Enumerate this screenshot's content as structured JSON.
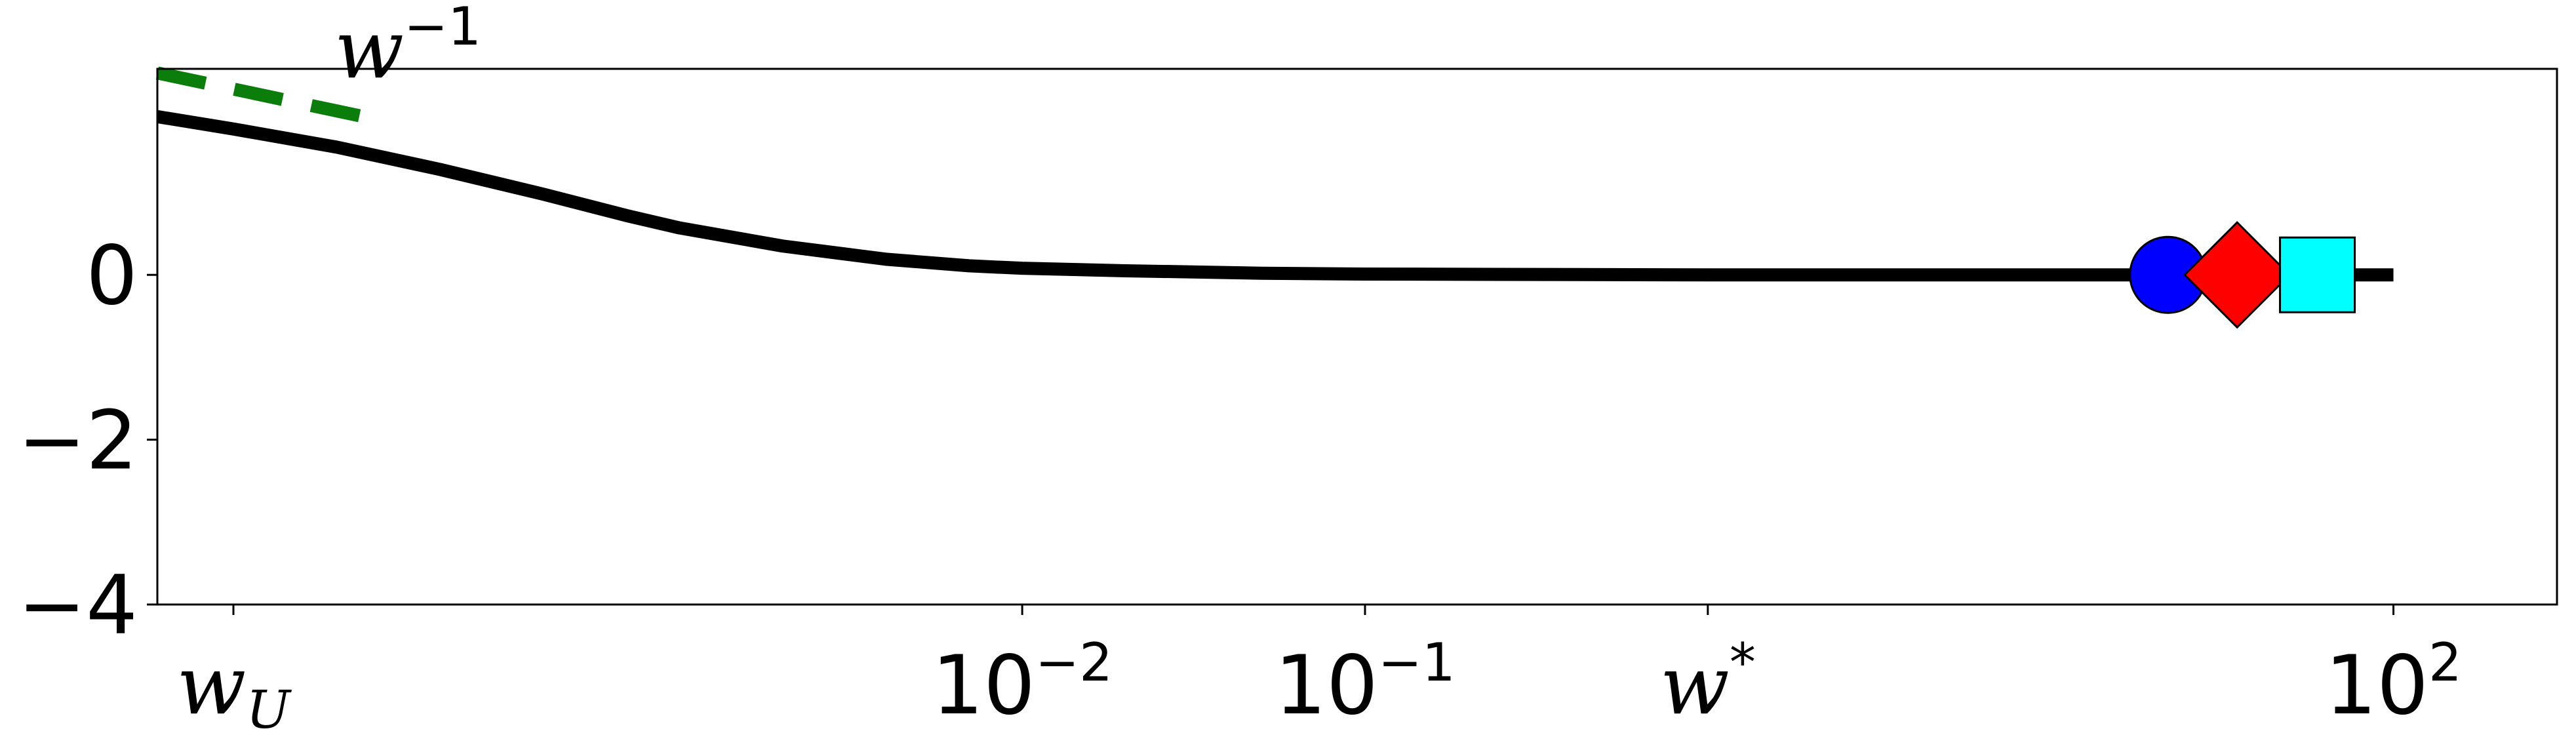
{
  "chart_data": {
    "type": "line",
    "title": "",
    "xlabel": "",
    "ylabel": "",
    "xscale": "log",
    "xlim": [
      3e-05,
      300
    ],
    "ylim": [
      -4,
      2.5
    ],
    "grid": false,
    "x_ticks": [
      {
        "value": 5e-05,
        "base": "w",
        "sub": "U",
        "sup": ""
      },
      {
        "value": 0.01,
        "base": "10",
        "sub": "",
        "sup": "−2"
      },
      {
        "value": 0.1,
        "base": "10",
        "sub": "",
        "sup": "−1"
      },
      {
        "value": 1,
        "base": "w",
        "sub": "",
        "sup": "*"
      },
      {
        "value": 100,
        "base": "10",
        "sub": "",
        "sup": "2"
      }
    ],
    "y_ticks": [
      {
        "value": 0,
        "label": "0"
      },
      {
        "value": -2,
        "label": "−2"
      },
      {
        "value": -4,
        "label": "−4"
      }
    ],
    "series": [
      {
        "color": "#000000",
        "style": "solid",
        "points": [
          [
            3e-05,
            1.92
          ],
          [
            5e-05,
            1.77
          ],
          [
            0.0001,
            1.55
          ],
          [
            0.0002,
            1.28
          ],
          [
            0.0004,
            0.98
          ],
          [
            0.0007,
            0.72
          ],
          [
            0.001,
            0.57
          ],
          [
            0.002,
            0.35
          ],
          [
            0.004,
            0.19
          ],
          [
            0.007,
            0.11
          ],
          [
            0.01,
            0.08
          ],
          [
            0.02,
            0.05
          ],
          [
            0.05,
            0.02
          ],
          [
            0.1,
            0.01
          ],
          [
            1,
            0.0
          ],
          [
            10,
            0.0
          ],
          [
            100,
            0.0
          ]
        ]
      }
    ],
    "reference_line": {
      "label_base": "w",
      "label_sup": "−1",
      "color": "#0a7d0a",
      "style": "dashed",
      "points": [
        [
          3e-05,
          2.45
        ],
        [
          0.00012,
          1.92
        ]
      ]
    },
    "markers": [
      {
        "shape": "circle",
        "color": "#0000ff",
        "x": 22,
        "y": 0.0
      },
      {
        "shape": "diamond",
        "color": "#ff0000",
        "x": 35,
        "y": 0.0
      },
      {
        "shape": "square",
        "color": "#00ffff",
        "x": 60,
        "y": 0.0
      }
    ]
  }
}
